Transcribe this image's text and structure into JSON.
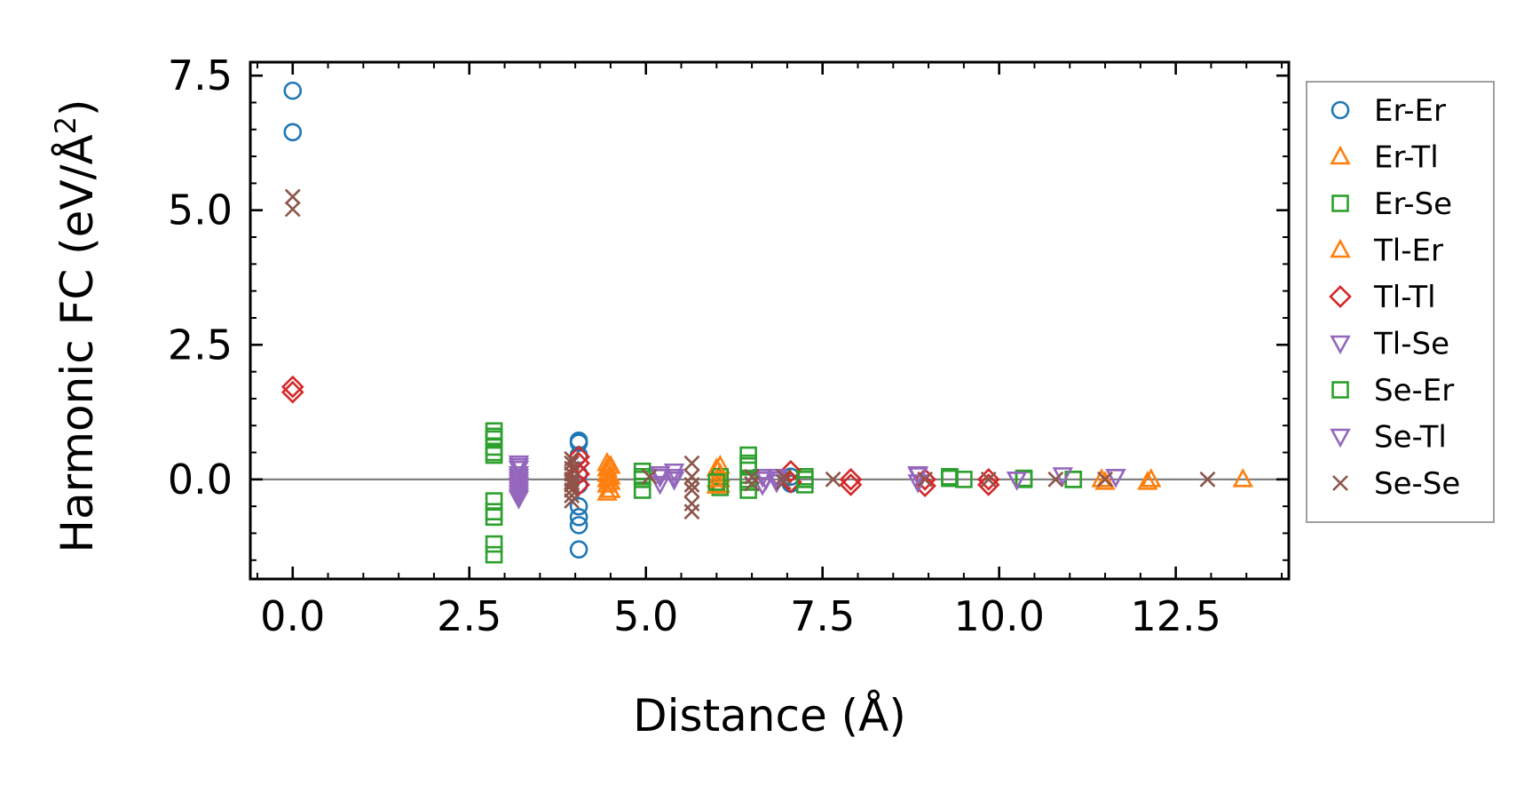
{
  "chart_data": {
    "type": "scatter",
    "title": "",
    "xlabel": "Distance (Å)",
    "ylabel": "Harmonic FC (eV/Å²)",
    "ylabel_parts": {
      "main": "Harmonic FC (eV/Å",
      "sup": "2",
      "close": ")"
    },
    "xlim": [
      -0.6,
      14.1
    ],
    "ylim": [
      -1.85,
      7.75
    ],
    "xticks": [
      0.0,
      2.5,
      5.0,
      7.5,
      10.0,
      12.5
    ],
    "xtick_labels": [
      "0.0",
      "2.5",
      "5.0",
      "7.5",
      "10.0",
      "12.5"
    ],
    "yticks": [
      0.0,
      2.5,
      5.0,
      7.5
    ],
    "ytick_labels": [
      "0.0",
      "2.5",
      "5.0",
      "7.5"
    ],
    "zero_line": 0,
    "legend_position": "outside-right",
    "series": [
      {
        "name": "Er-Er",
        "marker": "circle",
        "color": "#1f77b4",
        "x": [
          0,
          0,
          4.05,
          4.05,
          4.05,
          4.05,
          4.05,
          4.05,
          4.05,
          4.05,
          4.05,
          7.05,
          7.05
        ],
        "y": [
          7.22,
          6.45,
          0.72,
          0.68,
          0.45,
          0.1,
          -0.1,
          -0.5,
          -0.7,
          -0.85,
          -1.3,
          0.05,
          -0.08
        ]
      },
      {
        "name": "Er-Tl",
        "marker": "triangle-up",
        "color": "#ff7f0e",
        "x": [
          4.45,
          4.45,
          4.45,
          4.45,
          4.45,
          4.45,
          6.05,
          6.05,
          6.05,
          6.05,
          11.45,
          12.15,
          13.45
        ],
        "y": [
          0.3,
          0.2,
          0.1,
          0.0,
          -0.1,
          -0.25,
          0.25,
          0.1,
          0.0,
          -0.1,
          0.0,
          0.0,
          0.0
        ]
      },
      {
        "name": "Er-Se",
        "marker": "square",
        "color": "#2ca02c",
        "x": [
          2.85,
          2.85,
          2.85,
          2.85,
          2.85,
          2.85,
          2.85,
          2.85,
          4.95,
          4.95,
          4.95,
          6.05,
          6.05,
          6.45,
          6.45,
          6.45,
          6.45,
          7.25,
          7.25,
          9.3,
          9.5,
          10.35,
          11.05
        ],
        "y": [
          0.9,
          0.75,
          0.6,
          0.45,
          -0.4,
          -0.7,
          -1.2,
          -1.4,
          0.15,
          0.0,
          -0.2,
          0.05,
          -0.15,
          0.45,
          0.25,
          0.0,
          -0.2,
          0.05,
          -0.1,
          0.05,
          0.0,
          0.0,
          0.0
        ]
      },
      {
        "name": "Tl-Er",
        "marker": "triangle-up",
        "color": "#ff7f0e",
        "x": [
          4.5,
          4.5,
          4.5,
          4.5,
          6.0,
          6.0,
          6.0,
          11.5,
          12.1
        ],
        "y": [
          0.25,
          0.05,
          -0.05,
          -0.2,
          0.2,
          0.0,
          -0.12,
          -0.05,
          -0.05
        ]
      },
      {
        "name": "Tl-Tl",
        "marker": "diamond",
        "color": "#d62728",
        "x": [
          0,
          0,
          4.05,
          4.05,
          4.05,
          4.05,
          7.05,
          7.05,
          7.9,
          7.9,
          8.95,
          8.95,
          9.85,
          9.85
        ],
        "y": [
          1.72,
          1.62,
          0.42,
          0.3,
          0.1,
          -0.1,
          0.15,
          -0.05,
          0.0,
          -0.1,
          0.0,
          -0.12,
          0.0,
          -0.1
        ]
      },
      {
        "name": "Tl-Se",
        "marker": "triangle-down",
        "color": "#9467bd",
        "x": [
          3.2,
          3.2,
          3.2,
          3.2,
          3.2,
          3.2,
          3.2,
          3.2,
          3.2,
          3.2,
          5.2,
          5.2,
          5.4,
          5.4,
          6.65,
          6.65,
          6.85,
          6.85,
          8.85,
          8.85,
          10.25,
          11.65
        ],
        "y": [
          0.3,
          0.2,
          0.1,
          0.0,
          -0.05,
          -0.1,
          -0.15,
          -0.2,
          -0.25,
          -0.35,
          0.05,
          -0.08,
          0.15,
          0.0,
          0.05,
          -0.1,
          0.0,
          -0.05,
          0.1,
          -0.05,
          0.0,
          0.05
        ]
      },
      {
        "name": "Se-Er",
        "marker": "square",
        "color": "#2ca02c",
        "x": [
          2.85,
          2.85,
          2.85,
          4.95,
          6.0,
          6.45,
          6.45,
          7.25,
          9.3,
          10.35,
          11.05
        ],
        "y": [
          0.8,
          0.5,
          -0.6,
          0.05,
          -0.05,
          0.3,
          -0.05,
          0.0,
          0.02,
          0.02,
          0.0
        ]
      },
      {
        "name": "Se-Tl",
        "marker": "triangle-down",
        "color": "#9467bd",
        "x": [
          3.2,
          3.2,
          3.2,
          5.2,
          5.4,
          6.7,
          6.85,
          8.85,
          10.25,
          10.9,
          11.65
        ],
        "y": [
          0.25,
          0.05,
          -0.3,
          0.1,
          0.05,
          0.0,
          0.05,
          0.08,
          0.0,
          0.08,
          0.05
        ]
      },
      {
        "name": "Se-Se",
        "marker": "cross",
        "color": "#8c564b",
        "x": [
          0,
          0,
          3.95,
          3.95,
          3.95,
          3.95,
          3.95,
          3.95,
          3.95,
          3.95,
          3.95,
          3.95,
          5.05,
          5.65,
          5.65,
          5.65,
          5.65,
          5.65,
          5.65,
          6.5,
          6.5,
          6.95,
          6.95,
          7.65,
          8.95,
          9.85,
          10.8,
          11.5,
          12.95
        ],
        "y": [
          5.25,
          5.02,
          0.38,
          0.3,
          0.2,
          0.1,
          0.0,
          -0.05,
          -0.1,
          -0.2,
          -0.3,
          -0.4,
          0.05,
          0.3,
          0.05,
          -0.1,
          -0.2,
          -0.45,
          -0.6,
          0.05,
          -0.08,
          0.05,
          -0.05,
          0.0,
          0.0,
          0.0,
          0.0,
          0.0,
          0.0
        ]
      }
    ]
  }
}
